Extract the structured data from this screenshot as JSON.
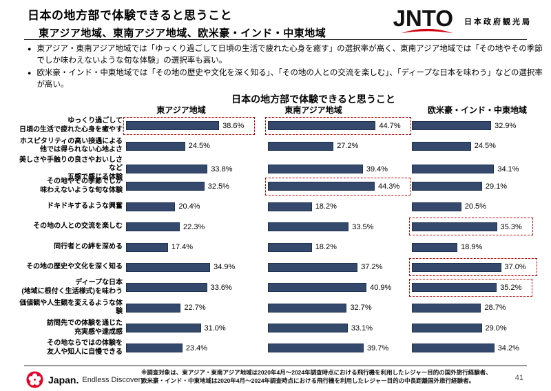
{
  "header": {
    "title": "日本の地方部で体験できると思うこと",
    "subtitle": "東アジア地域、東南アジア地域、欧米豪・インド・中東地域",
    "logo": {
      "wordmark": "JNTO",
      "org": "日本政府観光局"
    }
  },
  "bullets": [
    "東アジア・東南アジア地域では「ゆっくり過ごして日頃の生活で疲れた心身を癒す」の選択率が高く、東南アジア地域では「その地やその季節でしか味わえないような旬な体験」の選択率も高い。",
    "欧米豪・インド・中東地域では「その地の歴史や文化を深く知る」、「その地の人との交流を楽しむ」、「ディープな日本を味わう」などの選択率が高い。"
  ],
  "chart_data": {
    "type": "bar",
    "orientation": "horizontal",
    "title": "日本の地方部で体験できると思うこと",
    "unit": "%",
    "xlim": [
      0,
      50
    ],
    "grid": false,
    "bar_color": "#34496B",
    "highlight_box_color": "#C00000",
    "categories": [
      [
        "ゆっくり過ごして",
        "日頃の生活で疲れた心身を癒やす"
      ],
      [
        "ホスピタリティの高い接遇による",
        "他では得られない心地よさ"
      ],
      [
        "美しさや手触りの良さやおいしさなど",
        "五感で感じる体験"
      ],
      [
        "その地やその季節でしか",
        "味わえないような旬な体験"
      ],
      [
        "ドキドキするような興奮"
      ],
      [
        "その地の人との交流を楽しむ"
      ],
      [
        "同行者との絆を深める"
      ],
      [
        "その地の歴史や文化を深く知る"
      ],
      [
        "ディープな日本",
        "(地域に根付く生活様式)を味わう"
      ],
      [
        "価値観や人生観を変えるような体験"
      ],
      [
        "訪問先での体験を通じた",
        "充実感や達成感"
      ],
      [
        "その地ならではの体験を",
        "友人や知人に自慢できる"
      ]
    ],
    "series": [
      {
        "name": "東アジア地域",
        "values": [
          "38.6%",
          "24.5%",
          "33.8%",
          "32.5%",
          "20.4%",
          "22.3%",
          "17.4%",
          "34.9%",
          "33.6%",
          "22.7%",
          "31.0%",
          "23.4%"
        ],
        "highlighted_rows": [
          0
        ]
      },
      {
        "name": "東南アジア地域",
        "values": [
          "44.7%",
          "27.2%",
          "39.4%",
          "44.3%",
          "18.2%",
          "33.5%",
          "18.2%",
          "37.2%",
          "40.9%",
          "32.7%",
          "33.1%",
          "39.7%"
        ],
        "highlighted_rows": [
          0,
          3
        ]
      },
      {
        "name": "欧米豪・インド・中東地域",
        "values": [
          "32.9%",
          "24.5%",
          "34.1%",
          "29.1%",
          "20.5%",
          "35.3%",
          "18.9%",
          "37.0%",
          "35.2%",
          "28.7%",
          "29.0%",
          "34.2%"
        ],
        "highlighted_rows": [
          5,
          7,
          8
        ]
      }
    ]
  },
  "footer": {
    "logo_main": "Japan.",
    "logo_sub": "Endless Discovery.",
    "note": "※調査対象は、東アジア・東南アジア地域は2020年4月～2024年調査時点における飛行機を利用したレジャー目的の国外旅行経験者、欧米豪・インド・中東地域は2020年4月～2024年調査時点における飛行機を利用したレジャー目的の中長距離国外旅行経験者。",
    "page_number": "41"
  }
}
